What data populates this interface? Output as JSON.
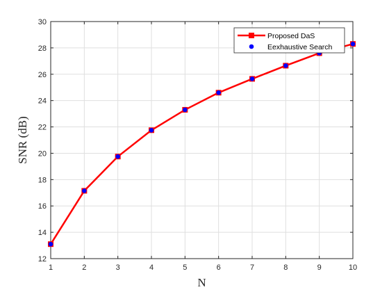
{
  "chart_data": {
    "type": "line",
    "xlabel": "N",
    "ylabel": "SNR (dB)",
    "xlim": [
      1,
      10
    ],
    "ylim": [
      12,
      30
    ],
    "xticks": [
      "1",
      "2",
      "3",
      "4",
      "5",
      "6",
      "7",
      "8",
      "9",
      "10"
    ],
    "yticks": [
      "12",
      "14",
      "16",
      "18",
      "20",
      "22",
      "24",
      "26",
      "28",
      "30"
    ],
    "grid": true,
    "legend_position": "top-right",
    "x": [
      1,
      2,
      3,
      4,
      5,
      6,
      7,
      8,
      9,
      10
    ],
    "series": [
      {
        "name": "Proposed DaS",
        "marker": "square",
        "color": "#ff0000",
        "values": [
          13.1,
          17.15,
          19.75,
          21.75,
          23.3,
          24.6,
          25.65,
          26.65,
          27.6,
          28.3
        ]
      },
      {
        "name": "Eexhaustive Search",
        "marker": "circle",
        "color": "#0000ff",
        "values": [
          13.1,
          17.15,
          19.75,
          21.75,
          23.3,
          24.6,
          25.65,
          26.65,
          27.6,
          28.3
        ]
      }
    ]
  }
}
